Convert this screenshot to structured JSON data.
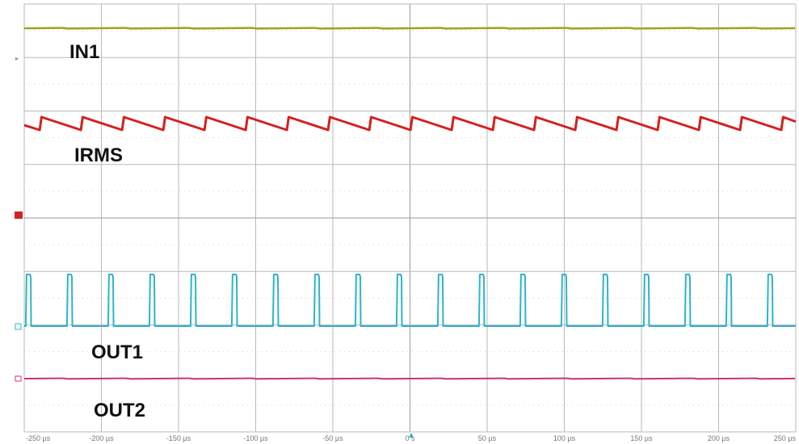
{
  "chart_data": {
    "type": "line",
    "title": "",
    "xlabel": "",
    "ylabel": "",
    "x_unit": "µs",
    "xlim": [
      -250,
      250
    ],
    "x_ticks": [
      -250,
      -200,
      -150,
      -100,
      -50,
      0,
      50,
      100,
      150,
      200,
      250
    ],
    "x_tick_labels": [
      "-250 µs",
      "-200 µs",
      "-150 µs",
      "-100 µs",
      "-50 µs",
      "0 s",
      "50 µs",
      "100 µs",
      "150 µs",
      "200 µs",
      "250 µs"
    ],
    "grid": true,
    "series": [
      {
        "name": "IN1",
        "color": "#a3a21a",
        "shape": "dc",
        "level": 1.0
      },
      {
        "name": "IRMS",
        "color": "#d42020",
        "shape": "sawtooth",
        "period_us": 26.7,
        "first_edge_us": -240,
        "low": 0.35,
        "high": 0.6
      },
      {
        "name": "OUT1",
        "color": "#2fb4c8",
        "shape": "pulse_train",
        "period_us": 26.7,
        "first_edge_us": -249,
        "pulse_width_us": 3.2,
        "low": 0.0,
        "high": 1.0
      },
      {
        "name": "OUT2",
        "color": "#d0307a",
        "shape": "dc",
        "level": 0.0
      }
    ]
  }
}
